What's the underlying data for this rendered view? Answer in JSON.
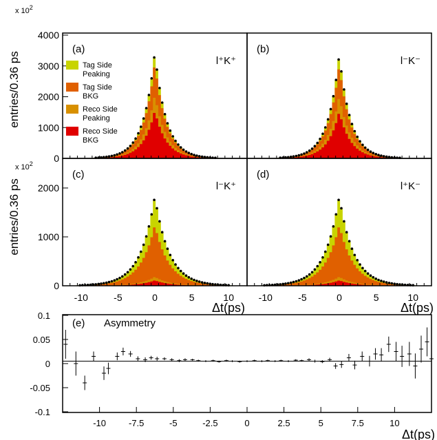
{
  "figure": {
    "y_label_top": "entries/0.36 ps",
    "y_label_mid": "entries/0.36 ps",
    "multiplier_top": "x 10",
    "multiplier_mid": "x 10",
    "multiplier_exp": "2",
    "dt_label": "Δt(ps)"
  },
  "colors": {
    "tag_peaking": "#c8d400",
    "tag_bkg": "#e06000",
    "reco_peaking": "#d89000",
    "reco_bkg": "#e00000",
    "points": "#000000"
  },
  "legend": [
    {
      "line1": "Tag Side",
      "line2": "Peaking",
      "color": "#c8d400"
    },
    {
      "line1": "Tag Side",
      "line2": "BKG",
      "color": "#e06000"
    },
    {
      "line1": "Reco Side",
      "line2": "Peaking",
      "color": "#d89000"
    },
    {
      "line1": "Reco Side",
      "line2": "BKG",
      "color": "#e00000"
    }
  ],
  "chart_data": [
    {
      "type": "area",
      "panel": "(a)",
      "label": "l⁺K⁺",
      "xlim": [
        -12.5,
        12.5
      ],
      "ylim": [
        0,
        4000
      ],
      "yticks": [
        "0",
        "1000",
        "2000",
        "3000",
        "4000"
      ],
      "xticks": [],
      "peak_total": 3450,
      "width": 1.55,
      "stack_fractions": {
        "reco_bkg": 0.45,
        "reco_peaking": 0.15,
        "tag_bkg": 0.3,
        "tag_peaking": 0.1
      }
    },
    {
      "type": "area",
      "panel": "(b)",
      "label": "l⁻K⁻",
      "xlim": [
        -12.5,
        12.5
      ],
      "ylim": [
        0,
        4000
      ],
      "yticks": [],
      "xticks": [],
      "peak_total": 3380,
      "width": 1.55,
      "stack_fractions": {
        "reco_bkg": 0.45,
        "reco_peaking": 0.15,
        "tag_bkg": 0.3,
        "tag_peaking": 0.1
      }
    },
    {
      "type": "area",
      "panel": "(c)",
      "label": "l⁻K⁺",
      "xlim": [
        -12.5,
        12.5
      ],
      "ylim": [
        0,
        2300
      ],
      "yticks": [
        "0",
        "1000",
        "2000"
      ],
      "xticks": [
        "-10",
        "-5",
        "0",
        "5",
        "10"
      ],
      "peak_total": 1830,
      "width": 1.95,
      "stack_fractions": {
        "reco_bkg": 0.06,
        "reco_peaking": 0.04,
        "tag_bkg": 0.58,
        "tag_peaking": 0.32
      }
    },
    {
      "type": "area",
      "panel": "(d)",
      "label": "l⁺K⁻",
      "xlim": [
        -12.5,
        12.5
      ],
      "ylim": [
        0,
        2300
      ],
      "yticks": [],
      "xticks": [
        "-10",
        "-5",
        "0",
        "5",
        "10"
      ],
      "peak_total": 1830,
      "width": 1.95,
      "stack_fractions": {
        "reco_bkg": 0.06,
        "reco_peaking": 0.04,
        "tag_bkg": 0.58,
        "tag_peaking": 0.32
      }
    },
    {
      "type": "scatter",
      "panel": "(e)",
      "title": "Asymmetry",
      "xlim": [
        -12.5,
        12.5
      ],
      "ylim": [
        -0.1,
        0.1
      ],
      "xticks": [
        "-10",
        "-7.5",
        "-5",
        "-2.5",
        "0",
        "2.5",
        "5",
        "7.5",
        "10"
      ],
      "yticks": [
        "-0.1",
        "-0.05",
        "0",
        "0.05",
        "0.1"
      ],
      "points": [
        {
          "x": -12.3,
          "y": 0.04,
          "err": 0.03
        },
        {
          "x": -11.6,
          "y": 0.0,
          "err": 0.025
        },
        {
          "x": -11.0,
          "y": -0.04,
          "err": 0.015
        },
        {
          "x": -10.4,
          "y": 0.015,
          "err": 0.01
        },
        {
          "x": -9.7,
          "y": -0.02,
          "err": 0.014
        },
        {
          "x": -9.4,
          "y": -0.01,
          "err": 0.012
        },
        {
          "x": -8.8,
          "y": 0.015,
          "err": 0.008
        },
        {
          "x": -8.4,
          "y": 0.025,
          "err": 0.008
        },
        {
          "x": -7.9,
          "y": 0.02,
          "err": 0.006
        },
        {
          "x": -7.4,
          "y": 0.01,
          "err": 0.005
        },
        {
          "x": -6.9,
          "y": 0.008,
          "err": 0.005
        },
        {
          "x": -6.5,
          "y": 0.012,
          "err": 0.004
        },
        {
          "x": -6.1,
          "y": 0.01,
          "err": 0.004
        },
        {
          "x": -5.6,
          "y": 0.01,
          "err": 0.003
        },
        {
          "x": -5.1,
          "y": 0.008,
          "err": 0.003
        },
        {
          "x": -4.6,
          "y": 0.006,
          "err": 0.003
        },
        {
          "x": -4.2,
          "y": 0.008,
          "err": 0.003
        },
        {
          "x": -3.7,
          "y": 0.008,
          "err": 0.002
        },
        {
          "x": -3.3,
          "y": 0.006,
          "err": 0.002
        },
        {
          "x": -2.8,
          "y": 0.005,
          "err": 0.002
        },
        {
          "x": -2.3,
          "y": 0.006,
          "err": 0.002
        },
        {
          "x": -1.9,
          "y": 0.004,
          "err": 0.002
        },
        {
          "x": -1.4,
          "y": 0.006,
          "err": 0.002
        },
        {
          "x": -1.0,
          "y": 0.005,
          "err": 0.002
        },
        {
          "x": -0.5,
          "y": 0.004,
          "err": 0.002
        },
        {
          "x": 0.0,
          "y": 0.005,
          "err": 0.002
        },
        {
          "x": 0.5,
          "y": 0.006,
          "err": 0.002
        },
        {
          "x": 1.0,
          "y": 0.005,
          "err": 0.002
        },
        {
          "x": 1.4,
          "y": 0.006,
          "err": 0.002
        },
        {
          "x": 1.9,
          "y": 0.005,
          "err": 0.002
        },
        {
          "x": 2.3,
          "y": 0.006,
          "err": 0.002
        },
        {
          "x": 2.8,
          "y": 0.005,
          "err": 0.002
        },
        {
          "x": 3.3,
          "y": 0.007,
          "err": 0.002
        },
        {
          "x": 3.7,
          "y": 0.006,
          "err": 0.002
        },
        {
          "x": 4.2,
          "y": 0.008,
          "err": 0.003
        },
        {
          "x": 4.6,
          "y": 0.005,
          "err": 0.003
        },
        {
          "x": 5.1,
          "y": 0.004,
          "err": 0.003
        },
        {
          "x": 5.6,
          "y": 0.008,
          "err": 0.004
        },
        {
          "x": 6.0,
          "y": -0.005,
          "err": 0.006
        },
        {
          "x": 6.4,
          "y": -0.002,
          "err": 0.007
        },
        {
          "x": 6.9,
          "y": 0.012,
          "err": 0.008
        },
        {
          "x": 7.3,
          "y": -0.003,
          "err": 0.009
        },
        {
          "x": 7.8,
          "y": 0.015,
          "err": 0.01
        },
        {
          "x": 8.3,
          "y": 0.005,
          "err": 0.011
        },
        {
          "x": 8.7,
          "y": 0.02,
          "err": 0.012
        },
        {
          "x": 9.1,
          "y": 0.018,
          "err": 0.014
        },
        {
          "x": 9.6,
          "y": 0.04,
          "err": 0.016
        },
        {
          "x": 10.1,
          "y": 0.025,
          "err": 0.02
        },
        {
          "x": 10.5,
          "y": 0.015,
          "err": 0.022
        },
        {
          "x": 11.0,
          "y": 0.02,
          "err": 0.025
        },
        {
          "x": 11.4,
          "y": -0.005,
          "err": 0.026
        },
        {
          "x": 11.8,
          "y": 0.03,
          "err": 0.028
        },
        {
          "x": 12.2,
          "y": 0.045,
          "err": 0.03
        },
        {
          "x": 12.5,
          "y": 0.01,
          "err": 0.032
        }
      ]
    }
  ]
}
